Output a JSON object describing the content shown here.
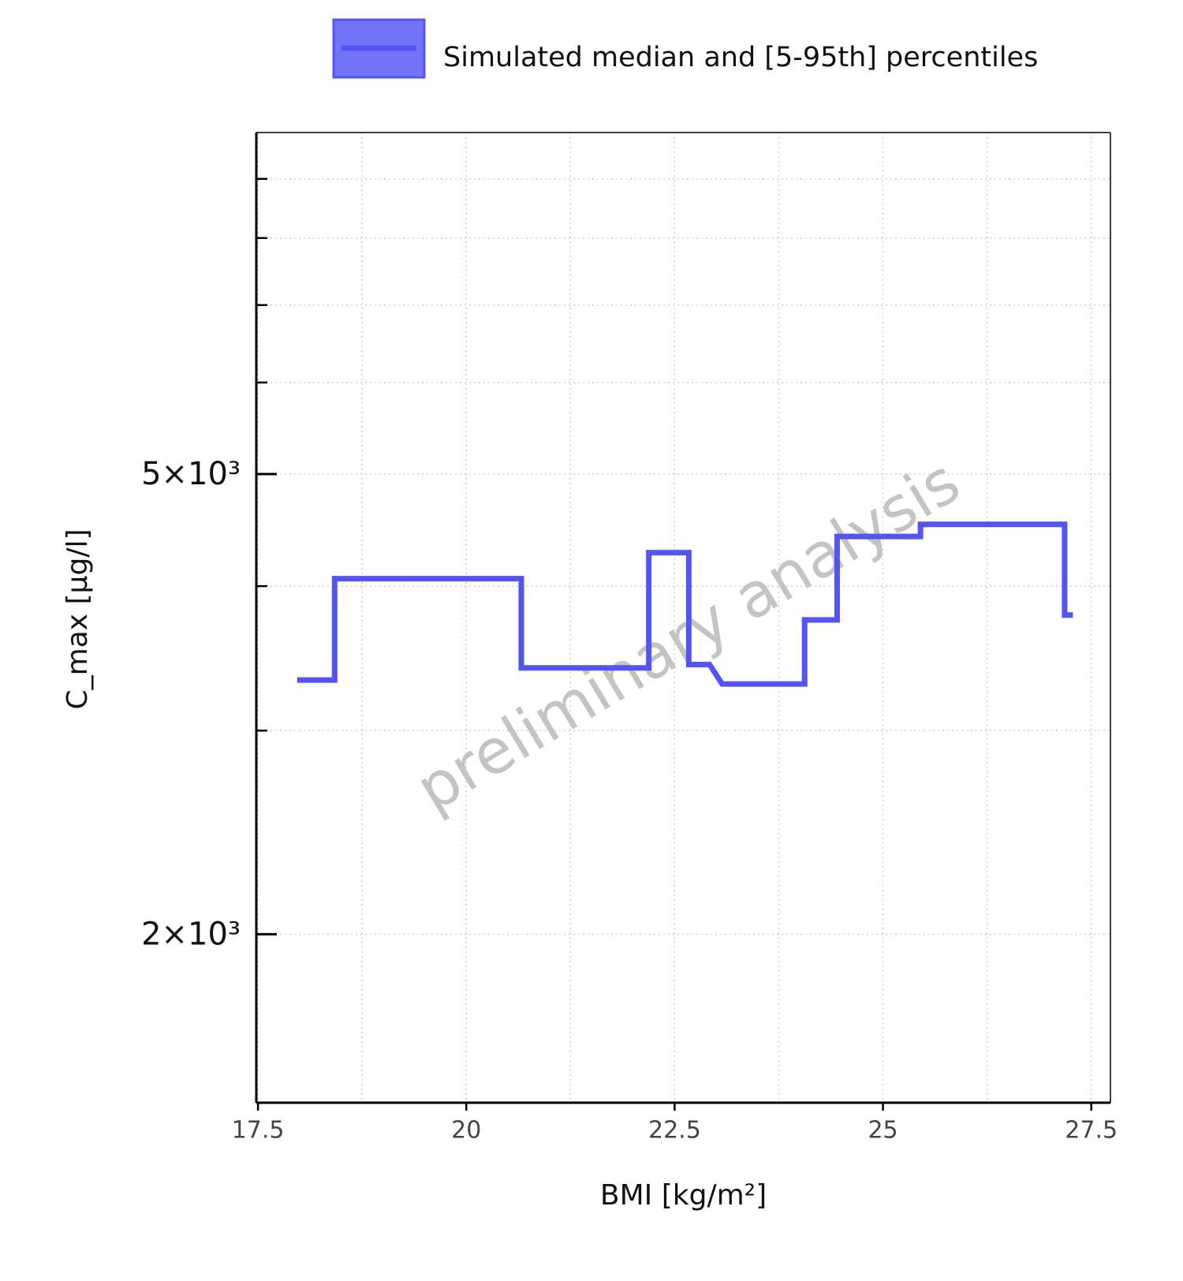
{
  "chart_data": {
    "type": "line",
    "xlabel": "BMI [kg/m²]",
    "ylabel": "C_max [µg/l]",
    "watermark": "preliminary analysis",
    "xlim": [
      17.48,
      27.73
    ],
    "xticks": [
      17.5,
      20.0,
      22.5,
      25.0,
      27.5
    ],
    "xminorticks": [
      18.75,
      21.25,
      23.75,
      26.25
    ],
    "ylim": [
      1430,
      9870
    ],
    "ylog": true,
    "yticks": [
      {
        "value": 2000,
        "label": "2×10³"
      },
      {
        "value": 5000,
        "label": "5×10³"
      }
    ],
    "yminorticks": [
      3000,
      4000,
      6000,
      7000,
      8000,
      9000
    ],
    "grid": true,
    "legend": "top",
    "series": [
      {
        "name": "Simulated median and [5-95th] percentiles",
        "color": "#5454f5",
        "x": [
          17.97,
          18.42,
          18.42,
          20.66,
          20.66,
          22.19,
          22.19,
          22.67,
          22.67,
          22.92,
          23.07,
          24.06,
          24.06,
          24.45,
          24.45,
          25.45,
          25.45,
          27.18,
          27.18,
          27.28
        ],
        "values": [
          3318,
          3318,
          4060,
          4060,
          3399,
          3399,
          4276,
          4276,
          3422,
          3422,
          3292,
          3292,
          3740,
          3740,
          4416,
          4416,
          4524,
          4524,
          3776,
          3776
        ]
      }
    ]
  }
}
